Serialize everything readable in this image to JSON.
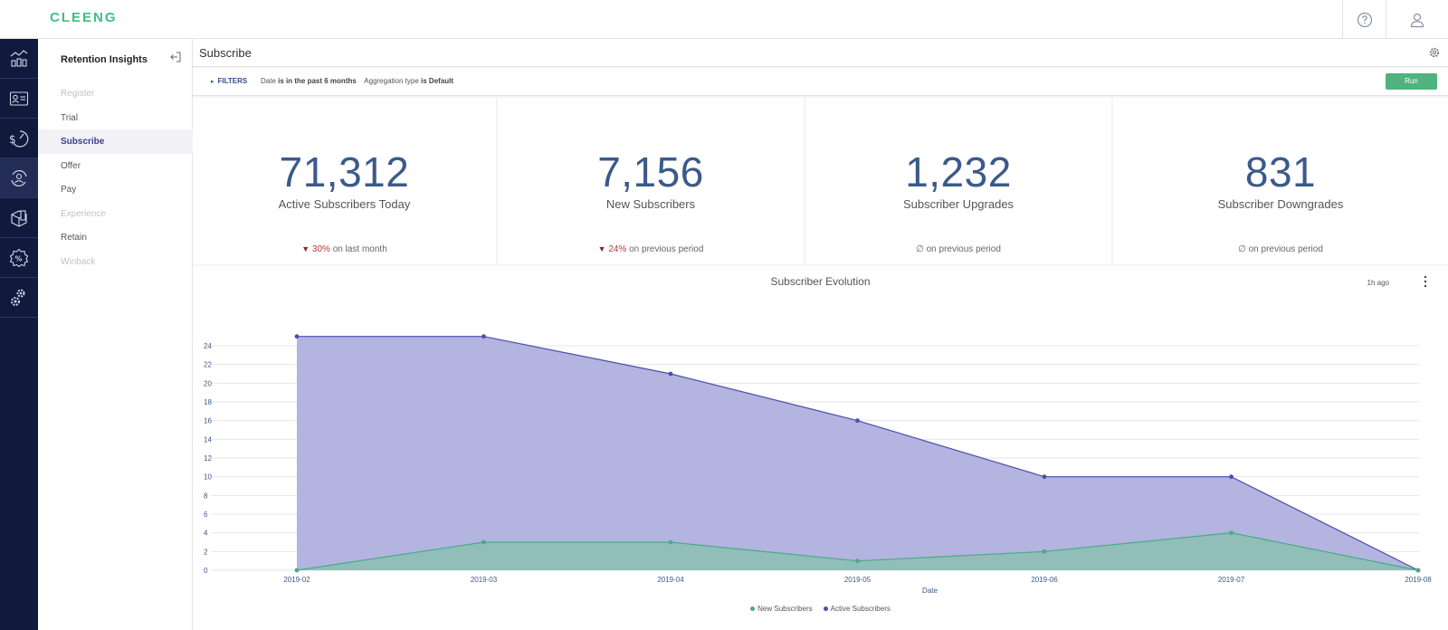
{
  "brand": {
    "logo_text": "CLEENG",
    "accent": "#3fbf82"
  },
  "topbar": {
    "help_icon": "help-circle-icon",
    "user_icon": "user-icon"
  },
  "rail": {
    "items": [
      {
        "name": "analytics-icon"
      },
      {
        "name": "customer-card-icon"
      },
      {
        "name": "revenue-gauge-icon"
      },
      {
        "name": "retention-icon",
        "active": true
      },
      {
        "name": "product-box-icon"
      },
      {
        "name": "discount-badge-icon"
      },
      {
        "name": "settings-gears-icon"
      }
    ]
  },
  "sidebar": {
    "title": "Retention Insights",
    "items": [
      {
        "label": "Register",
        "state": "disabled"
      },
      {
        "label": "Trial",
        "state": "normal"
      },
      {
        "label": "Subscribe",
        "state": "active"
      },
      {
        "label": "Offer",
        "state": "normal"
      },
      {
        "label": "Pay",
        "state": "normal"
      },
      {
        "label": "Experience",
        "state": "disabled"
      },
      {
        "label": "Retain",
        "state": "normal"
      },
      {
        "label": "Winback",
        "state": "disabled"
      }
    ]
  },
  "page": {
    "title": "Subscribe"
  },
  "filters": {
    "toggle_label": "FILTERS",
    "date_label": "Date",
    "date_value": "is in the past 6 months",
    "agg_label": "Aggregation type",
    "agg_value": "is Default",
    "run_label": "Run"
  },
  "kpis": [
    {
      "value": "71,312",
      "label": "Active Subscribers Today",
      "change": "30%",
      "change_suffix": "on last month",
      "trend": "down"
    },
    {
      "value": "7,156",
      "label": "New Subscribers",
      "change": "24%",
      "change_suffix": "on previous period",
      "trend": "down"
    },
    {
      "value": "1,232",
      "label": "Subscriber Upgrades",
      "change": "∅",
      "change_suffix": "on previous period",
      "trend": "none"
    },
    {
      "value": "831",
      "label": "Subscriber Downgrades",
      "change": "∅",
      "change_suffix": "on previous period",
      "trend": "none"
    }
  ],
  "chart": {
    "title": "Subscriber Evolution",
    "updated": "1h ago",
    "xlabel": "Date"
  },
  "chart_data": {
    "type": "area",
    "title": "Subscriber Evolution",
    "xlabel": "Date",
    "ylabel": "",
    "x": [
      "2019-02",
      "2019-03",
      "2019-04",
      "2019-05",
      "2019-06",
      "2019-07",
      "2019-08"
    ],
    "ylim": [
      0,
      24
    ],
    "yticks": [
      0,
      2,
      4,
      6,
      8,
      10,
      12,
      14,
      16,
      18,
      20,
      22,
      24
    ],
    "grid": true,
    "legend": "bottom",
    "series": [
      {
        "name": "New Subscribers",
        "values": [
          0,
          3,
          3,
          1,
          2,
          4,
          0
        ],
        "color": "#4aaa8a",
        "fill": "#8fbfb5"
      },
      {
        "name": "Active Subscribers",
        "values": [
          25,
          25,
          21,
          16,
          10,
          10,
          0
        ],
        "color": "#4a4fae",
        "fill": "#b3b4df"
      }
    ]
  }
}
